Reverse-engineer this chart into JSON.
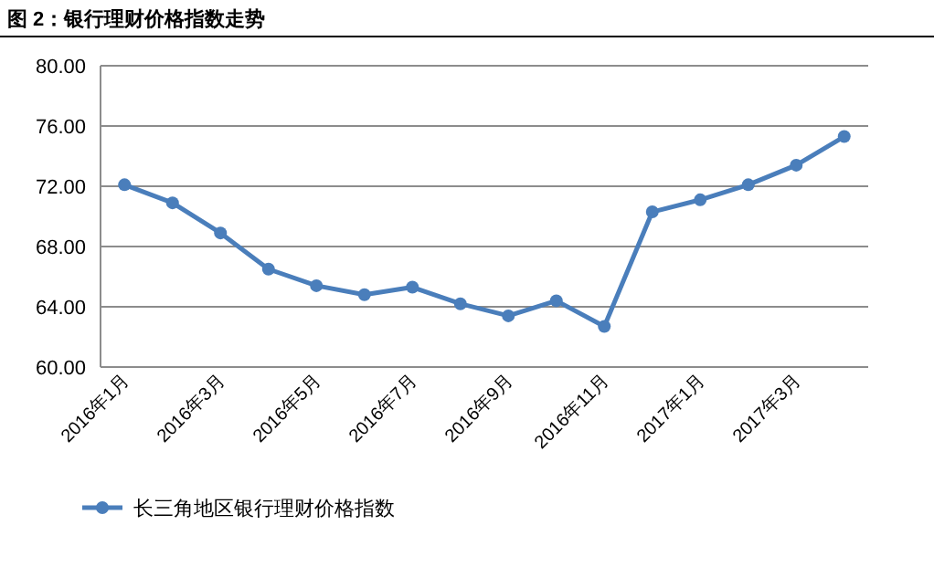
{
  "chart_data": {
    "type": "line",
    "title": "图 2：银行理财价格指数走势",
    "categories": [
      "2016年1月",
      null,
      "2016年3月",
      null,
      "2016年5月",
      null,
      "2016年7月",
      null,
      "2016年9月",
      null,
      "2016年11月",
      null,
      "2017年1月",
      null,
      "2017年3月",
      null
    ],
    "series": [
      {
        "name": "长三角地区银行理财价格指数",
        "color": "#4a7ebb",
        "values": [
          72.1,
          70.9,
          68.9,
          66.5,
          65.4,
          64.8,
          65.3,
          64.2,
          63.4,
          64.4,
          62.7,
          70.3,
          71.1,
          72.1,
          73.4,
          75.3
        ]
      }
    ],
    "ylim": [
      60,
      80
    ],
    "yticks": [
      {
        "value": 60,
        "label": "60.00"
      },
      {
        "value": 64,
        "label": "64.00"
      },
      {
        "value": 68,
        "label": "68.00"
      },
      {
        "value": 72,
        "label": "72.00"
      },
      {
        "value": 76,
        "label": "76.00"
      },
      {
        "value": 80,
        "label": "80.00"
      }
    ],
    "grid": "y",
    "legend": "bottom",
    "marker": "circle",
    "line_style": "solid"
  }
}
